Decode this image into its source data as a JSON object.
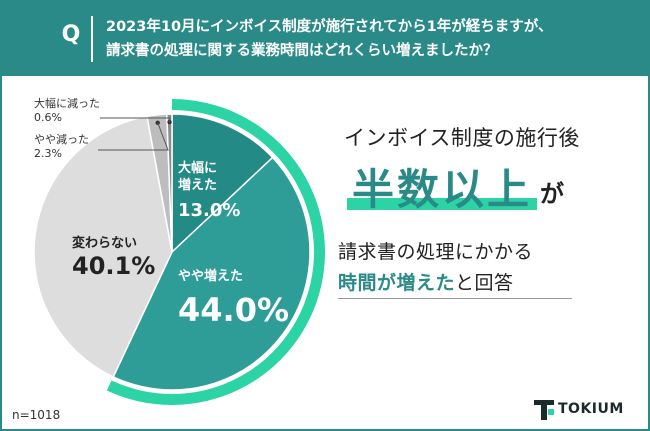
{
  "header": {
    "q_label": "Q",
    "question_line1": "2023年10月にインボイス制度が施行されてから1年が経ちますが、",
    "question_line2": "請求書の処理に関する業務時間はどれくらい増えましたか？"
  },
  "headline": {
    "line1": "インボイス制度の施行後",
    "big": "半数以上",
    "big_suffix": "が",
    "line2": "請求書の処理にかかる",
    "line3_highlight": "時間が増えた",
    "line3_rest": "と回答"
  },
  "sample": "n=1018",
  "logo": {
    "text": "TOKIUM"
  },
  "colors": {
    "header": "#2a8a87",
    "dark_teal": "#248a86",
    "mid_teal": "#2e9d98",
    "light_gray": "#dddddd",
    "mid_gray": "#bdbdbd",
    "dark_gray": "#8c8c8c",
    "accent_green": "#2bd3a5"
  },
  "chart_data": {
    "type": "pie",
    "slices": [
      {
        "label_lines": [
          "大幅に",
          "増えた"
        ],
        "value": 13.0,
        "value_text": "13.0%"
      },
      {
        "label_lines": [
          "やや増えた"
        ],
        "value": 44.0,
        "value_text": "44.0%"
      },
      {
        "label_lines": [
          "変わらない"
        ],
        "value": 40.1,
        "value_text": "40.1%"
      },
      {
        "label_lines": [
          "やや減った"
        ],
        "value": 2.3,
        "value_text": "2.3%"
      },
      {
        "label_lines": [
          "大幅に減った"
        ],
        "value": 0.6,
        "value_text": "0.6%"
      }
    ]
  }
}
